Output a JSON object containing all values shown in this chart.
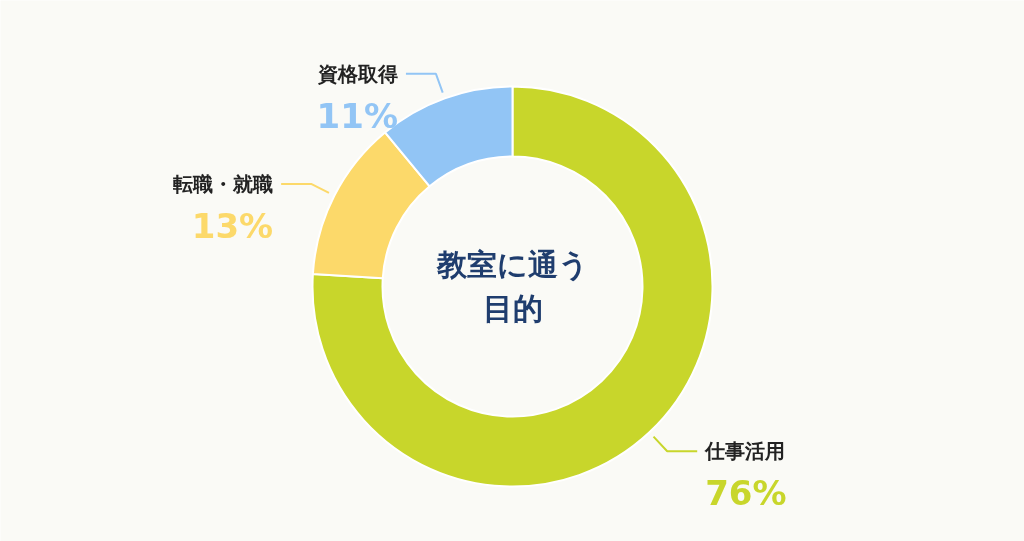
{
  "chart_data": {
    "type": "donut",
    "title": "教室に通う",
    "subtitle": "目的",
    "categories": [
      "仕事活用",
      "転職・就職",
      "資格取得"
    ],
    "values": [
      76,
      13,
      11
    ],
    "colors": [
      "#c8d62b",
      "#fcd96a",
      "#92c5f5"
    ],
    "value_labels": [
      "76%",
      "13%",
      "11%"
    ]
  }
}
